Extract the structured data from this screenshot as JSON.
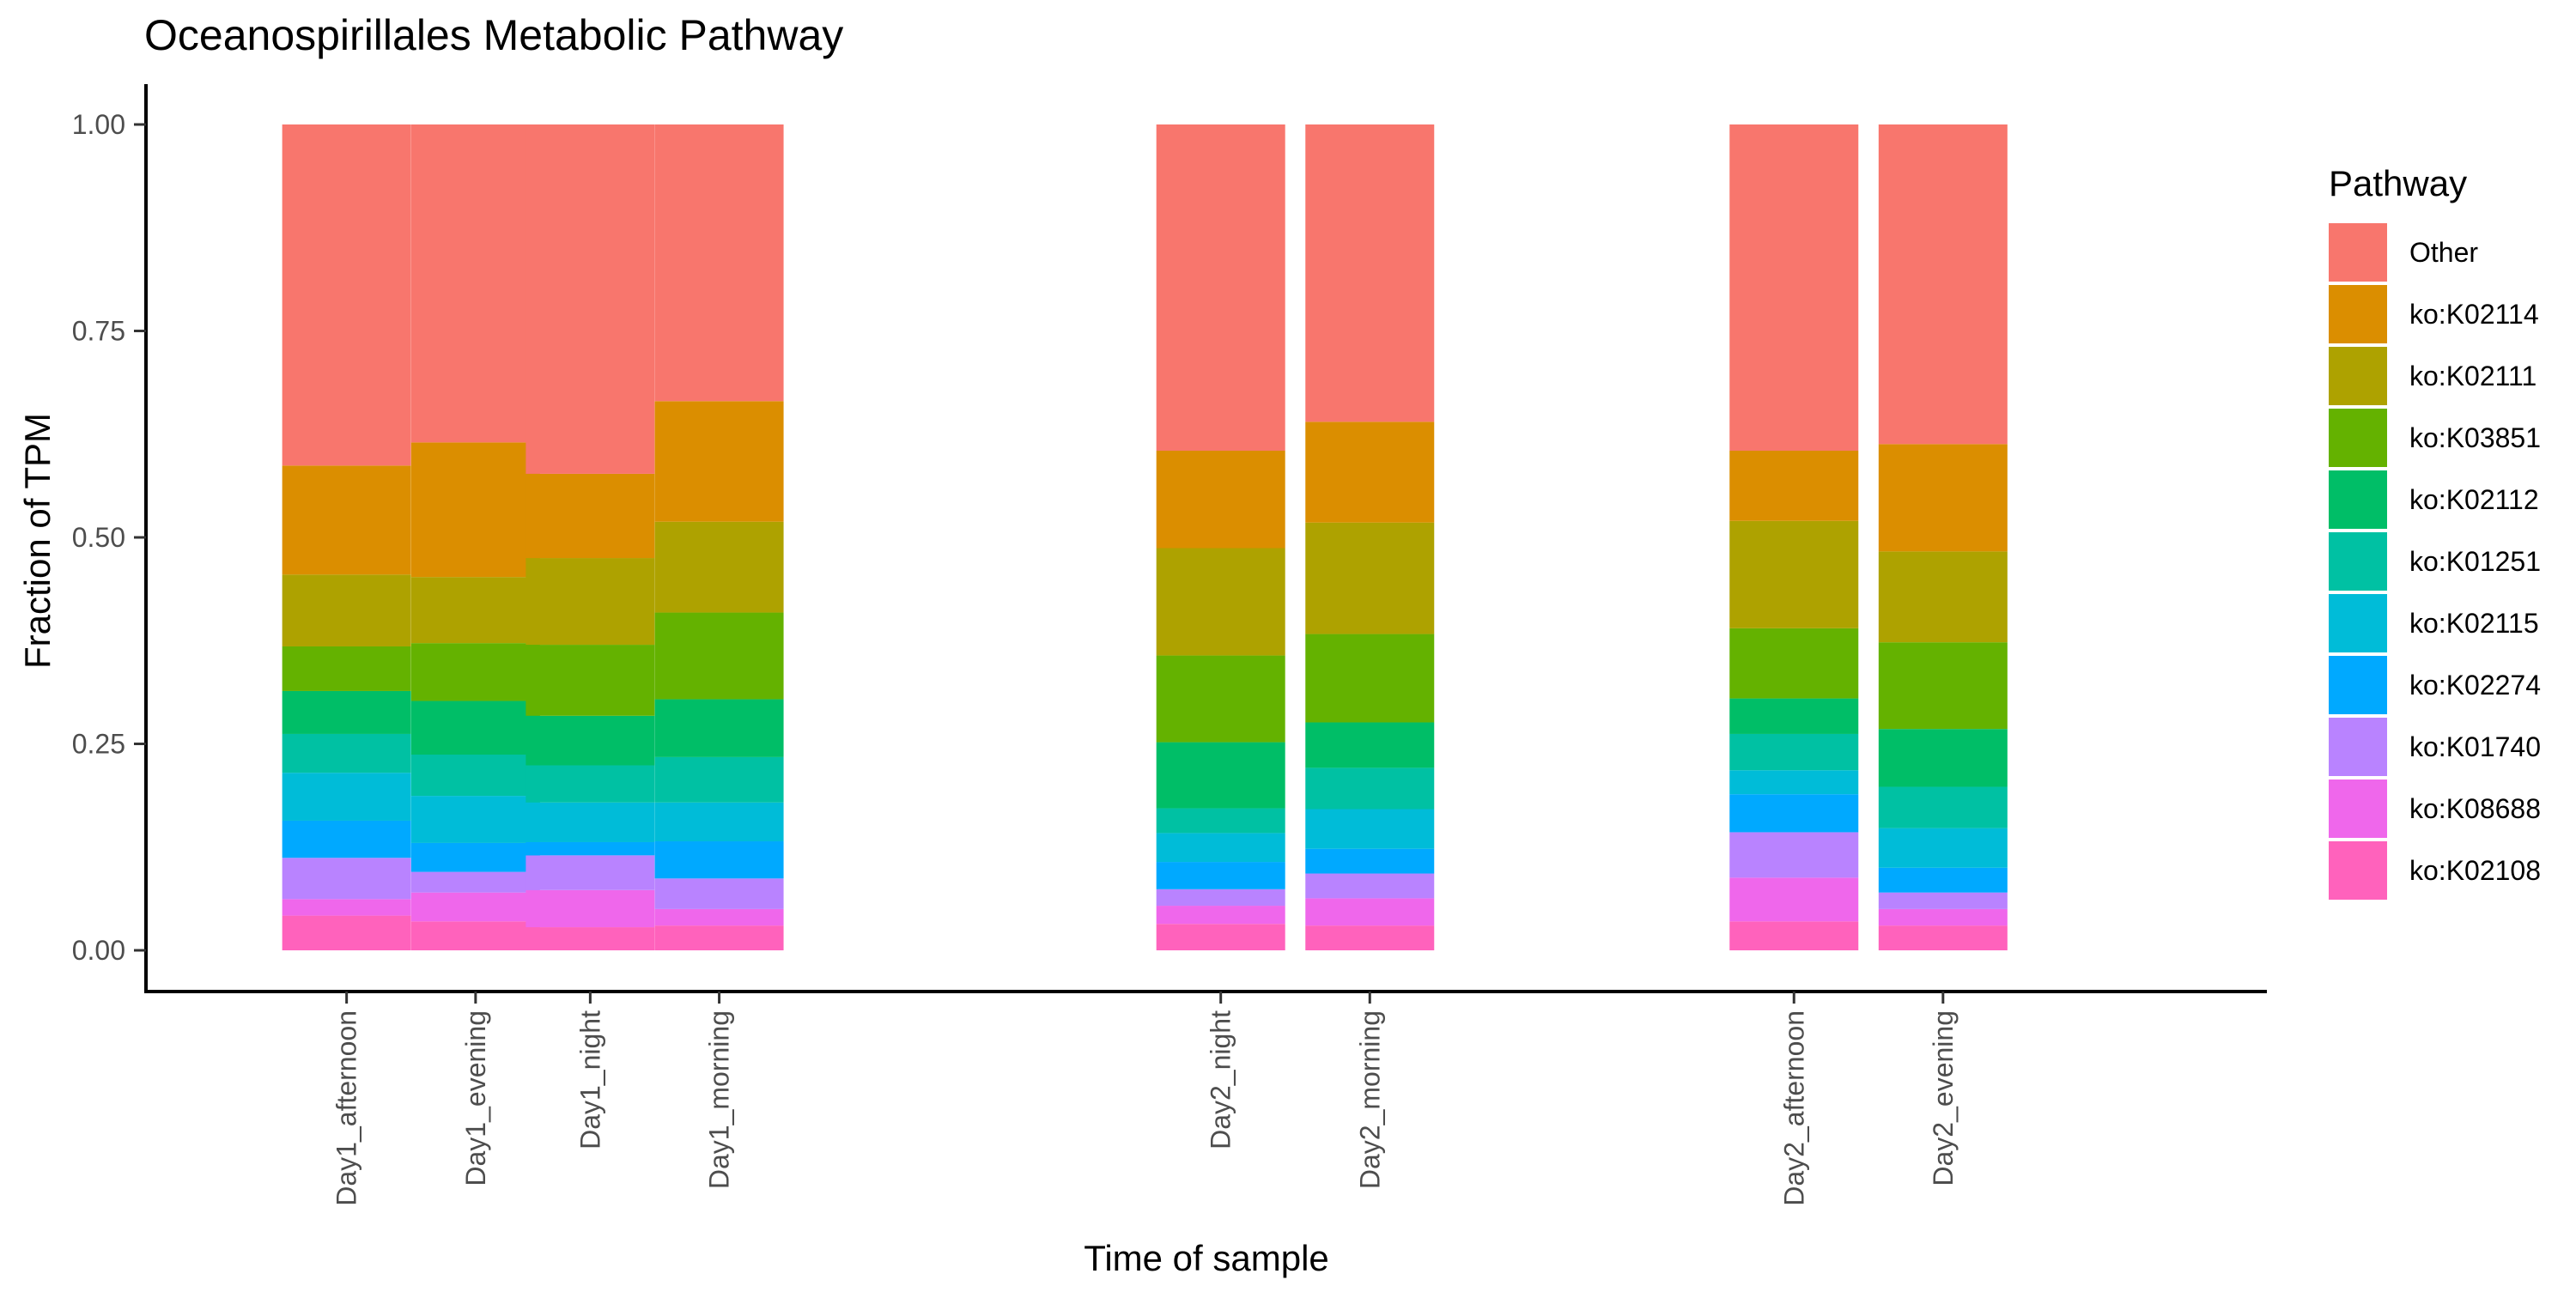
{
  "chart_data": {
    "type": "bar",
    "stacked": true,
    "title": "Oceanospirillales Metabolic Pathway",
    "xlabel": "Time of sample",
    "ylabel": "Fraction of TPM",
    "ylim": [
      0,
      1
    ],
    "y_ticks": [
      "0.00",
      "0.25",
      "0.50",
      "0.75",
      "1.00"
    ],
    "y_tick_values": [
      0,
      0.25,
      0.5,
      0.75,
      1.0
    ],
    "grid": false,
    "categories": [
      "Day1_afternoon",
      "Day1_evening",
      "Day1_night",
      "Day1_morning",
      "Day2_night",
      "Day2_morning",
      "Day2_afternoon",
      "Day2_evening"
    ],
    "category_x": [
      3.5,
      5.75,
      7.75,
      10.0,
      18.75,
      21.35,
      28.75,
      31.35
    ],
    "x_range": [
      0,
      37
    ],
    "legend": {
      "title": "Pathway",
      "position": "right"
    },
    "series": [
      {
        "name": "ko:K02108",
        "color": "#FF62BC",
        "values": [
          0.042,
          0.035,
          0.028,
          0.03,
          0.032,
          0.03,
          0.035,
          0.03
        ]
      },
      {
        "name": "ko:K08688",
        "color": "#EF67EB",
        "values": [
          0.02,
          0.035,
          0.045,
          0.02,
          0.022,
          0.033,
          0.053,
          0.02
        ]
      },
      {
        "name": "ko:K01740",
        "color": "#B983FF",
        "values": [
          0.05,
          0.025,
          0.042,
          0.037,
          0.02,
          0.03,
          0.055,
          0.02
        ]
      },
      {
        "name": "ko:K02274",
        "color": "#00A9FF",
        "values": [
          0.045,
          0.035,
          0.016,
          0.045,
          0.033,
          0.03,
          0.046,
          0.03
        ]
      },
      {
        "name": "ko:K02115",
        "color": "#00BCD8",
        "values": [
          0.058,
          0.057,
          0.048,
          0.047,
          0.035,
          0.048,
          0.029,
          0.048
        ]
      },
      {
        "name": "ko:K01251",
        "color": "#00C1A3",
        "values": [
          0.047,
          0.05,
          0.045,
          0.055,
          0.03,
          0.05,
          0.044,
          0.05
        ]
      },
      {
        "name": "ko:K02112",
        "color": "#00BE67",
        "values": [
          0.052,
          0.065,
          0.06,
          0.07,
          0.08,
          0.055,
          0.043,
          0.07
        ]
      },
      {
        "name": "ko:K03851",
        "color": "#64B200",
        "values": [
          0.054,
          0.07,
          0.086,
          0.105,
          0.105,
          0.107,
          0.085,
          0.105
        ]
      },
      {
        "name": "ko:K02111",
        "color": "#AEA200",
        "values": [
          0.087,
          0.08,
          0.105,
          0.11,
          0.13,
          0.135,
          0.13,
          0.11
        ]
      },
      {
        "name": "ko:K02114",
        "color": "#DB8E00",
        "values": [
          0.132,
          0.163,
          0.102,
          0.146,
          0.118,
          0.122,
          0.085,
          0.13
        ]
      },
      {
        "name": "Other",
        "color": "#F8766D",
        "values": [
          0.413,
          0.385,
          0.423,
          0.335,
          0.395,
          0.36,
          0.395,
          0.387
        ]
      }
    ]
  }
}
